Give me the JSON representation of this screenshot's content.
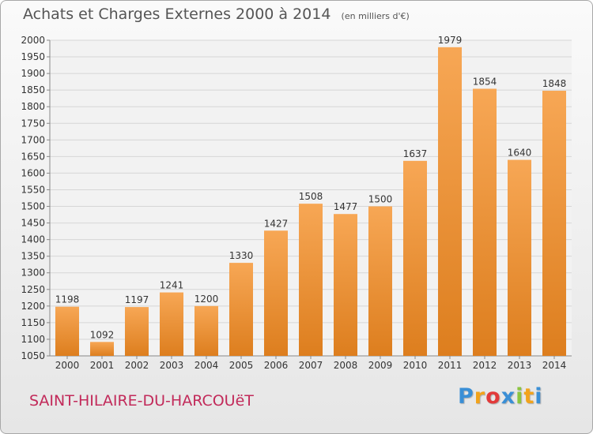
{
  "title": "Achats et Charges Externes 2000 à 2014",
  "unit_note": "(en milliers d'€)",
  "commune": "SAINT-HILAIRE-DU-HARCOUëT",
  "brand": {
    "letters": [
      "P",
      "r",
      "o",
      "x",
      "i",
      "t",
      "i"
    ],
    "colors": [
      "#3a8fd6",
      "#f2a31b",
      "#e23a3a",
      "#3a8fd6",
      "#8bc53f",
      "#f2a31b",
      "#3a8fd6"
    ]
  },
  "colors": {
    "bar_light": "#f7a755",
    "bar_dark": "#dd7e1e",
    "title_text": "#555555",
    "commune_text": "#c22a5a"
  },
  "chart_data": {
    "type": "bar",
    "categories": [
      "2000",
      "2001",
      "2002",
      "2003",
      "2004",
      "2005",
      "2006",
      "2007",
      "2008",
      "2009",
      "2010",
      "2011",
      "2012",
      "2013",
      "2014"
    ],
    "values": [
      1198,
      1092,
      1197,
      1241,
      1200,
      1330,
      1427,
      1508,
      1477,
      1500,
      1637,
      1979,
      1854,
      1640,
      1848
    ],
    "ylim": [
      1050,
      2000
    ],
    "yticks": [
      1050,
      1100,
      1150,
      1200,
      1250,
      1300,
      1350,
      1400,
      1450,
      1500,
      1550,
      1600,
      1650,
      1700,
      1750,
      1800,
      1850,
      1900,
      1950,
      2000
    ],
    "grid": true,
    "xlabel": "",
    "ylabel": ""
  }
}
